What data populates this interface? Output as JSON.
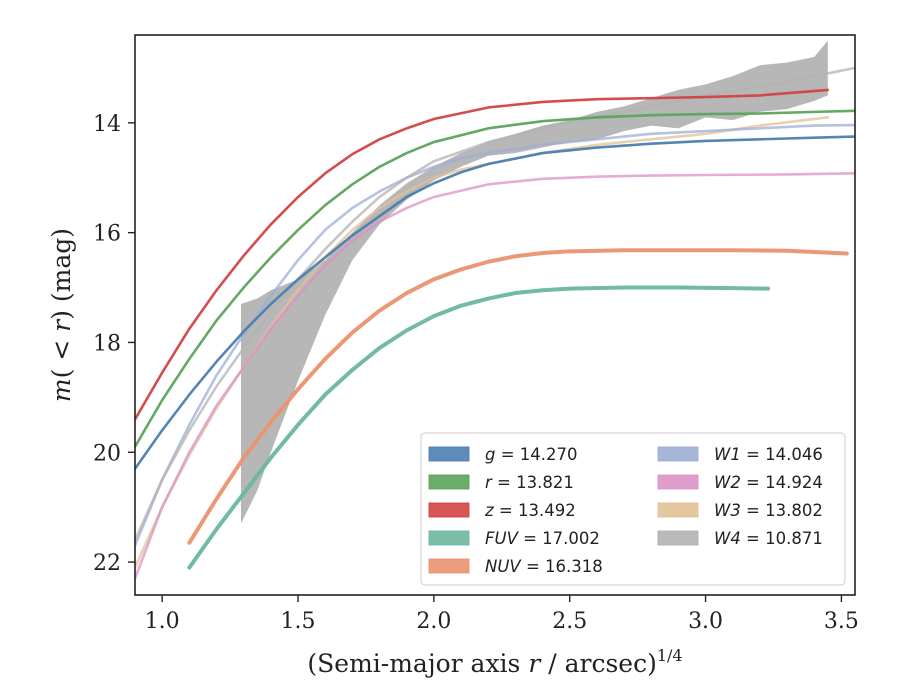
{
  "chart_data": {
    "type": "line",
    "xlabel": "(Semi-major axis r / arcsec)^1/4",
    "xlabel_parts": {
      "prefix": "(Semi-major axis ",
      "var": "r",
      "suffix": " / arcsec)",
      "sup": "1/4"
    },
    "ylabel": "m(<r) (mag)",
    "ylabel_parts": {
      "m": "m",
      "open": "(",
      "lt": " < ",
      "r": "r",
      "close": ")",
      "unit": " (mag)"
    },
    "xlim": [
      0.9,
      3.55
    ],
    "ylim": [
      22.6,
      12.4
    ],
    "y_inverted": true,
    "xticks": [
      1.0,
      1.5,
      2.0,
      2.5,
      3.0,
      3.5
    ],
    "xtick_labels": [
      "1.0",
      "1.5",
      "2.0",
      "2.5",
      "3.0",
      "3.5"
    ],
    "yticks": [
      14,
      16,
      18,
      20,
      22
    ],
    "ytick_labels": [
      "14",
      "16",
      "18",
      "20",
      "22"
    ],
    "grid": false,
    "legend_position": "lower-right",
    "legend_columns": 2,
    "series": [
      {
        "band": "g",
        "total": "14.270",
        "color": "#4c7eaf",
        "x": [
          0.9,
          1.0,
          1.1,
          1.2,
          1.3,
          1.4,
          1.5,
          1.6,
          1.7,
          1.8,
          1.9,
          2.0,
          2.1,
          2.2,
          2.4,
          2.6,
          2.8,
          3.0,
          3.2,
          3.4,
          3.55
        ],
        "y": [
          20.3,
          19.6,
          18.95,
          18.35,
          17.8,
          17.3,
          16.85,
          16.45,
          16.05,
          15.7,
          15.35,
          15.1,
          14.9,
          14.75,
          14.55,
          14.45,
          14.38,
          14.33,
          14.3,
          14.27,
          14.25
        ]
      },
      {
        "band": "r",
        "total": "13.821",
        "color": "#5ba35b",
        "x": [
          0.9,
          1.0,
          1.1,
          1.2,
          1.3,
          1.4,
          1.5,
          1.6,
          1.7,
          1.8,
          1.9,
          2.0,
          2.2,
          2.4,
          2.6,
          2.8,
          3.0,
          3.2,
          3.4,
          3.55
        ],
        "y": [
          19.9,
          19.05,
          18.3,
          17.6,
          17.0,
          16.45,
          15.95,
          15.5,
          15.12,
          14.8,
          14.55,
          14.35,
          14.1,
          13.97,
          13.9,
          13.86,
          13.84,
          13.83,
          13.8,
          13.78
        ]
      },
      {
        "band": "z",
        "total": "13.492",
        "color": "#d24343",
        "x": [
          0.9,
          1.0,
          1.1,
          1.2,
          1.3,
          1.4,
          1.5,
          1.6,
          1.7,
          1.8,
          1.9,
          2.0,
          2.2,
          2.4,
          2.6,
          2.8,
          3.0,
          3.2,
          3.45
        ],
        "y": [
          19.4,
          18.55,
          17.75,
          17.05,
          16.42,
          15.85,
          15.35,
          14.92,
          14.57,
          14.3,
          14.1,
          13.93,
          13.72,
          13.62,
          13.57,
          13.55,
          13.53,
          13.5,
          13.4
        ]
      },
      {
        "band": "FUV",
        "total": "17.002",
        "color": "#6cb6a0",
        "x": [
          1.1,
          1.2,
          1.3,
          1.4,
          1.5,
          1.6,
          1.7,
          1.8,
          1.9,
          2.0,
          2.1,
          2.2,
          2.3,
          2.4,
          2.5,
          2.7,
          2.9,
          3.1,
          3.23
        ],
        "y": [
          22.1,
          21.4,
          20.75,
          20.1,
          19.5,
          18.95,
          18.5,
          18.1,
          17.78,
          17.52,
          17.33,
          17.2,
          17.1,
          17.05,
          17.02,
          17.0,
          17.0,
          17.01,
          17.02
        ]
      },
      {
        "band": "NUV",
        "total": "16.318",
        "color": "#ea9270",
        "x": [
          1.1,
          1.2,
          1.3,
          1.4,
          1.5,
          1.6,
          1.7,
          1.8,
          1.9,
          2.0,
          2.1,
          2.2,
          2.3,
          2.4,
          2.5,
          2.7,
          2.9,
          3.1,
          3.3,
          3.52
        ],
        "y": [
          21.65,
          20.85,
          20.1,
          19.45,
          18.85,
          18.3,
          17.82,
          17.42,
          17.1,
          16.85,
          16.67,
          16.53,
          16.43,
          16.37,
          16.34,
          16.32,
          16.32,
          16.32,
          16.33,
          16.38
        ]
      },
      {
        "band": "W1",
        "total": "14.046",
        "color": "#9daed4",
        "x": [
          0.9,
          1.0,
          1.1,
          1.2,
          1.3,
          1.4,
          1.5,
          1.6,
          1.7,
          1.8,
          1.9,
          2.0,
          2.1,
          2.2,
          2.4,
          2.6,
          2.8,
          3.0,
          3.2,
          3.4,
          3.55
        ],
        "y": [
          21.7,
          20.5,
          19.5,
          18.6,
          17.85,
          17.15,
          16.5,
          15.95,
          15.55,
          15.25,
          15.0,
          14.8,
          14.65,
          14.55,
          14.4,
          14.3,
          14.2,
          14.15,
          14.1,
          14.05,
          14.04
        ]
      },
      {
        "band": "W2",
        "total": "14.924",
        "color": "#db92c6",
        "x": [
          0.9,
          1.0,
          1.1,
          1.2,
          1.3,
          1.4,
          1.5,
          1.6,
          1.7,
          1.8,
          1.9,
          2.0,
          2.2,
          2.4,
          2.6,
          2.8,
          3.0,
          3.3,
          3.55
        ],
        "y": [
          22.3,
          21.0,
          20.0,
          19.15,
          18.45,
          17.75,
          17.15,
          16.6,
          16.15,
          15.8,
          15.55,
          15.35,
          15.12,
          15.02,
          14.98,
          14.96,
          14.95,
          14.94,
          14.92
        ]
      },
      {
        "band": "W3",
        "total": "13.802",
        "color": "#e2c196",
        "x": [
          0.9,
          1.0,
          1.1,
          1.2,
          1.3,
          1.4,
          1.5,
          1.6,
          1.7,
          1.8,
          1.9,
          2.0,
          2.1,
          2.2,
          2.4,
          2.6,
          2.8,
          3.0,
          3.2,
          3.45
        ],
        "y": [
          22.1,
          21.0,
          20.05,
          19.2,
          18.45,
          17.7,
          17.05,
          16.45,
          15.95,
          15.55,
          15.25,
          15.0,
          14.85,
          14.75,
          14.55,
          14.4,
          14.3,
          14.2,
          14.05,
          13.9
        ]
      },
      {
        "band": "W4",
        "total": "10.871",
        "color": "#b3b3b3",
        "x": [
          0.9,
          1.0,
          1.1,
          1.2,
          1.3,
          1.4,
          1.5,
          1.6,
          1.7,
          1.8,
          1.9,
          2.0,
          2.2,
          2.4,
          2.6,
          2.8,
          3.0,
          3.2,
          3.4,
          3.55
        ],
        "y": [
          21.6,
          20.5,
          19.6,
          18.8,
          18.1,
          17.45,
          16.85,
          16.3,
          15.8,
          15.35,
          15.0,
          14.7,
          14.35,
          14.1,
          13.9,
          13.7,
          13.5,
          13.35,
          13.15,
          13.0
        ],
        "band_x": [
          1.29,
          1.35,
          1.4,
          1.5,
          1.6,
          1.7,
          1.8,
          1.9,
          2.0,
          2.1,
          2.2,
          2.3,
          2.4,
          2.5,
          2.6,
          2.7,
          2.8,
          2.9,
          3.0,
          3.1,
          3.2,
          3.3,
          3.4,
          3.45
        ],
        "band_lo": [
          21.3,
          20.7,
          20.0,
          18.7,
          17.5,
          16.5,
          15.85,
          15.4,
          15.05,
          14.8,
          14.6,
          14.55,
          14.45,
          14.35,
          14.3,
          14.15,
          14.05,
          14.1,
          13.9,
          13.95,
          13.8,
          13.75,
          13.6,
          13.5
        ],
        "band_hi": [
          17.3,
          17.2,
          17.05,
          16.85,
          16.5,
          16.0,
          15.5,
          15.1,
          14.8,
          14.55,
          14.35,
          14.2,
          14.05,
          13.95,
          13.8,
          13.7,
          13.55,
          13.4,
          13.3,
          13.15,
          12.95,
          12.9,
          12.8,
          12.5
        ]
      }
    ]
  }
}
